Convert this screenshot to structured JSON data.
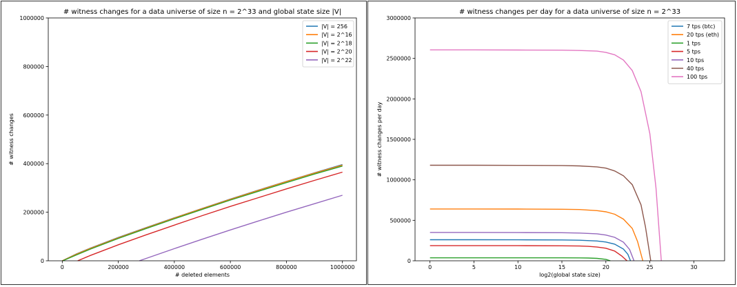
{
  "chart_data": [
    {
      "type": "line",
      "title": "# witness changes for a data universe of size n = 2^33 and global state size |V|",
      "xlabel": "# deleted elements",
      "ylabel": "# witness changes",
      "xlim": [
        -50000,
        1050000
      ],
      "ylim": [
        0,
        1000000
      ],
      "xticks": [
        0,
        200000,
        400000,
        600000,
        800000,
        1000000
      ],
      "xtick_labels": [
        "0",
        "200000",
        "400000",
        "600000",
        "800000",
        "1000000"
      ],
      "yticks": [
        0,
        200000,
        400000,
        600000,
        800000,
        1000000
      ],
      "ytick_labels": [
        "0",
        "200000",
        "400000",
        "600000",
        "800000",
        "1000000"
      ],
      "grid": false,
      "legend_position": "top-right",
      "series": [
        {
          "name": "|V| = 256",
          "color": "#1f77b4",
          "x": [
            0,
            50000,
            100000,
            200000,
            300000,
            400000,
            500000,
            600000,
            700000,
            800000,
            900000,
            1000000
          ],
          "y": [
            0,
            28000,
            52000,
            96000,
            137000,
            177000,
            216000,
            254000,
            291000,
            327000,
            362000,
            396000
          ]
        },
        {
          "name": "|V| = 2^16",
          "color": "#ff7f0e",
          "x": [
            0,
            50000,
            100000,
            200000,
            300000,
            400000,
            500000,
            600000,
            700000,
            800000,
            900000,
            1000000
          ],
          "y": [
            0,
            27000,
            51000,
            95000,
            136000,
            176000,
            215000,
            253000,
            290000,
            326000,
            361000,
            394000
          ]
        },
        {
          "name": "|V| = 2^18",
          "color": "#2ca02c",
          "x": [
            2000,
            50000,
            100000,
            200000,
            300000,
            400000,
            500000,
            600000,
            700000,
            800000,
            900000,
            1000000
          ],
          "y": [
            0,
            24000,
            48000,
            92000,
            133000,
            173000,
            212000,
            250000,
            286000,
            322000,
            357000,
            390000
          ]
        },
        {
          "name": "|V| = 2^20",
          "color": "#d62728",
          "x": [
            55000,
            100000,
            200000,
            300000,
            400000,
            500000,
            600000,
            700000,
            800000,
            900000,
            1000000
          ],
          "y": [
            0,
            22000,
            66000,
            107000,
            147000,
            186000,
            224000,
            260000,
            296000,
            331000,
            365000
          ]
        },
        {
          "name": "|V| = 2^22",
          "color": "#9467bd",
          "x": [
            275000,
            300000,
            400000,
            500000,
            600000,
            700000,
            800000,
            900000,
            1000000
          ],
          "y": [
            0,
            10000,
            50000,
            89000,
            127000,
            164000,
            200000,
            235000,
            270000
          ]
        }
      ]
    },
    {
      "type": "line",
      "title": "# witness changes per day for a data universe of size n = 2^33",
      "xlabel": "log2(global state size)",
      "ylabel": "# witness changes per day",
      "xlim": [
        -1.7,
        33.5
      ],
      "ylim": [
        0,
        3000000
      ],
      "xticks": [
        0,
        5,
        10,
        15,
        20,
        25,
        30
      ],
      "xtick_labels": [
        "0",
        "5",
        "10",
        "15",
        "20",
        "25",
        "30"
      ],
      "yticks": [
        0,
        500000,
        1000000,
        1500000,
        2000000,
        2500000,
        3000000
      ],
      "ytick_labels": [
        "0",
        "500000",
        "1000000",
        "1500000",
        "2000000",
        "2500000",
        "3000000"
      ],
      "grid": false,
      "legend_position": "top-right",
      "series": [
        {
          "name": "7 tps (btc)",
          "color": "#1f77b4",
          "x": [
            0,
            5,
            10,
            15,
            17,
            19,
            20,
            21,
            22,
            22.5,
            22.8
          ],
          "y": [
            260000,
            260000,
            259000,
            257000,
            254000,
            245000,
            232000,
            205000,
            145000,
            80000,
            0
          ]
        },
        {
          "name": "20 tps (eth)",
          "color": "#ff7f0e",
          "x": [
            0,
            5,
            10,
            15,
            17,
            19,
            20,
            21,
            22,
            23,
            23.6,
            24.2
          ],
          "y": [
            640000,
            640000,
            639000,
            637000,
            633000,
            620000,
            605000,
            575000,
            515000,
            400000,
            240000,
            0
          ]
        },
        {
          "name": "1 tps",
          "color": "#2ca02c",
          "x": [
            0,
            5,
            10,
            15,
            17,
            18,
            19,
            20,
            20.5
          ],
          "y": [
            37000,
            37000,
            37000,
            36500,
            35500,
            34000,
            30000,
            18000,
            0
          ]
        },
        {
          "name": "5 tps",
          "color": "#d62728",
          "x": [
            0,
            5,
            10,
            15,
            17,
            18,
            19,
            20,
            21,
            21.8,
            22.4
          ],
          "y": [
            187000,
            187000,
            186500,
            185000,
            182000,
            178000,
            170000,
            155000,
            120000,
            60000,
            0
          ]
        },
        {
          "name": "10 tps",
          "color": "#9467bd",
          "x": [
            0,
            5,
            10,
            15,
            17,
            19,
            20,
            21,
            22,
            22.7,
            23.2
          ],
          "y": [
            350000,
            350000,
            349000,
            347000,
            343000,
            333000,
            318000,
            290000,
            230000,
            140000,
            0
          ]
        },
        {
          "name": "40 tps",
          "color": "#8c564b",
          "x": [
            0,
            5,
            10,
            15,
            17,
            19,
            20,
            21,
            22,
            23,
            24,
            24.5,
            25.1
          ],
          "y": [
            1180000,
            1180000,
            1179000,
            1177000,
            1172000,
            1160000,
            1145000,
            1110000,
            1050000,
            940000,
            690000,
            420000,
            0
          ]
        },
        {
          "name": "100 tps",
          "color": "#e377c2",
          "x": [
            0,
            5,
            10,
            15,
            17,
            19,
            20,
            21,
            22,
            23,
            24,
            25,
            25.7,
            26.3
          ],
          "y": [
            2605000,
            2605000,
            2604000,
            2602000,
            2598000,
            2590000,
            2575000,
            2545000,
            2480000,
            2350000,
            2090000,
            1570000,
            900000,
            0
          ]
        }
      ]
    }
  ]
}
